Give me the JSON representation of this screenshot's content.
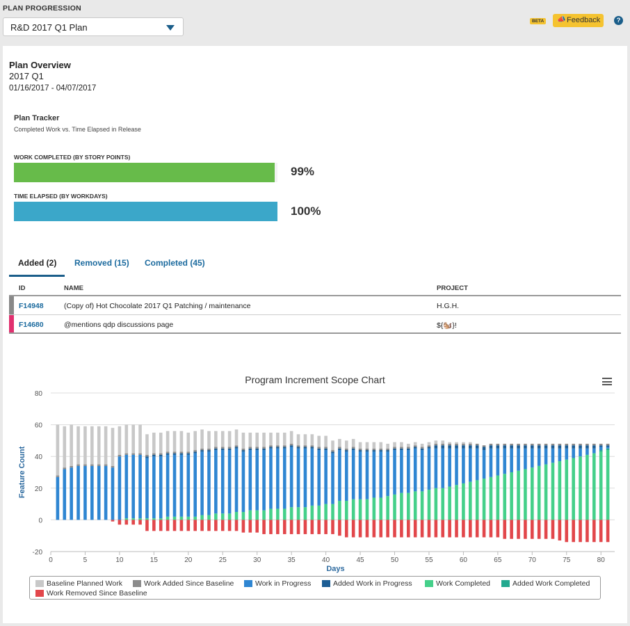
{
  "header": {
    "section_label": "PLAN PROGRESSION",
    "plan_select_value": "R&D 2017 Q1 Plan",
    "beta_badge": "BETA",
    "feedback_label": "Feedback",
    "help_glyph": "?"
  },
  "overview": {
    "title": "Plan Overview",
    "subtitle": "2017 Q1",
    "date_range": "01/16/2017 - 04/07/2017"
  },
  "tracker": {
    "title": "Plan Tracker",
    "subtitle": "Completed Work vs. Time Elapsed in Release",
    "bars": [
      {
        "label": "WORK COMPLETED (BY STORY POINTS)",
        "percent_text": "99%",
        "fraction": 0.99,
        "color": "#67bb4a"
      },
      {
        "label": "TIME ELAPSED (BY WORKDAYS)",
        "percent_text": "100%",
        "fraction": 1.0,
        "color": "#3ba7c9"
      }
    ]
  },
  "tabs": [
    {
      "label": "Added (2)",
      "active": true
    },
    {
      "label": "Removed (15)",
      "active": false
    },
    {
      "label": "Completed (45)",
      "active": false
    }
  ],
  "table": {
    "columns": [
      "ID",
      "NAME",
      "PROJECT"
    ],
    "rows": [
      {
        "id": "F14948",
        "name": "(Copy of) Hot Chocolate 2017 Q1 Patching / maintenance",
        "project": "H.G.H.",
        "color": "#888888"
      },
      {
        "id": "F14680",
        "name": "@mentions qdp discussions page",
        "project": "${🐿️}!",
        "color": "#e0306f"
      }
    ]
  },
  "chart_data": {
    "type": "bar",
    "title": "Program Increment Scope Chart",
    "xlabel": "Days",
    "ylabel": "Feature Count",
    "xlim": [
      0,
      82
    ],
    "ylim": [
      -20,
      80
    ],
    "x_ticks": [
      0,
      5,
      10,
      15,
      20,
      25,
      30,
      35,
      40,
      45,
      50,
      55,
      60,
      65,
      70,
      75,
      80
    ],
    "y_ticks": [
      -20,
      0,
      20,
      40,
      60,
      80
    ],
    "stacked": true,
    "legend_position": "bottom",
    "series": [
      {
        "name": "Baseline Planned Work",
        "color": "#c8c8c8"
      },
      {
        "name": "Work Added Since Baseline",
        "color": "#8c8c8c"
      },
      {
        "name": "Work in Progress",
        "color": "#2f86d2"
      },
      {
        "name": "Added Work in Progress",
        "color": "#1c5d94"
      },
      {
        "name": "Work Completed",
        "color": "#45d08a"
      },
      {
        "name": "Added Work Completed",
        "color": "#22a98f"
      },
      {
        "name": "Work Removed Since Baseline",
        "color": "#e2474b"
      }
    ],
    "days": [
      1,
      2,
      3,
      4,
      5,
      6,
      7,
      8,
      9,
      10,
      11,
      12,
      13,
      14,
      15,
      16,
      17,
      18,
      19,
      20,
      21,
      22,
      23,
      24,
      25,
      26,
      27,
      28,
      29,
      30,
      31,
      32,
      33,
      34,
      35,
      36,
      37,
      38,
      39,
      40,
      41,
      42,
      43,
      44,
      45,
      46,
      47,
      48,
      49,
      50,
      51,
      52,
      53,
      54,
      55,
      56,
      57,
      58,
      59,
      60,
      61,
      62,
      63,
      64,
      65,
      66,
      67,
      68,
      69,
      70,
      71,
      72,
      73,
      74,
      75,
      76,
      77,
      78,
      79,
      80,
      81
    ],
    "baseline_planned": [
      32,
      26,
      26,
      24,
      24,
      24,
      24,
      24,
      24,
      18,
      18,
      18,
      18,
      13,
      13,
      13,
      13,
      13,
      13,
      12,
      12,
      12,
      11,
      10,
      10,
      10,
      10,
      10,
      9,
      9,
      9,
      8,
      8,
      8,
      8,
      7,
      7,
      7,
      7,
      7,
      6,
      5,
      5,
      5,
      4,
      4,
      4,
      4,
      3,
      3,
      3,
      2,
      2,
      2,
      2,
      2,
      2,
      1,
      1,
      1,
      1,
      0,
      0,
      0,
      0,
      0,
      0,
      0,
      0,
      0,
      0,
      0,
      0,
      0,
      0,
      0,
      0,
      0,
      0,
      0,
      0
    ],
    "added_work": [
      1,
      1,
      1,
      1,
      1,
      1,
      1,
      1,
      1,
      1,
      1,
      1,
      1,
      1,
      1,
      1,
      1,
      1,
      1,
      1,
      1,
      1,
      1,
      1,
      1,
      1,
      1,
      1,
      1,
      1,
      1,
      1,
      1,
      1,
      1,
      1,
      1,
      1,
      1,
      1,
      1,
      1,
      1,
      1,
      1,
      1,
      1,
      1,
      1,
      1,
      1,
      1,
      1,
      1,
      1,
      1,
      1,
      1,
      1,
      1,
      1,
      1,
      1,
      1,
      1,
      1,
      1,
      1,
      1,
      1,
      1,
      1,
      1,
      1,
      1,
      1,
      1,
      1,
      1,
      1,
      1
    ],
    "work_in_progress": [
      27,
      32,
      33,
      34,
      34,
      34,
      34,
      34,
      33,
      40,
      40,
      40,
      40,
      38,
      39,
      39,
      39,
      39,
      39,
      39,
      40,
      40,
      40,
      40,
      40,
      40,
      40,
      38,
      38,
      38,
      38,
      38,
      38,
      38,
      38,
      37,
      37,
      36,
      35,
      34,
      32,
      32,
      31,
      31,
      30,
      30,
      29,
      29,
      28,
      28,
      27,
      27,
      27,
      26,
      26,
      25,
      25,
      24,
      23,
      22,
      21,
      20,
      18,
      18,
      17,
      16,
      15,
      14,
      13,
      12,
      11,
      10,
      9,
      8,
      7,
      6,
      5,
      4,
      3,
      2,
      1
    ],
    "added_in_progress": [
      0,
      0,
      0,
      0,
      0,
      0,
      0,
      0,
      0,
      0,
      0,
      0,
      0,
      1,
      1,
      1,
      1,
      1,
      1,
      1,
      1,
      1,
      1,
      1,
      1,
      1,
      1,
      1,
      1,
      1,
      1,
      1,
      1,
      1,
      1,
      1,
      1,
      1,
      1,
      1,
      1,
      1,
      1,
      1,
      1,
      1,
      1,
      1,
      1,
      1,
      1,
      1,
      1,
      1,
      1,
      2,
      2,
      2,
      2,
      2,
      2,
      2,
      2,
      2,
      2,
      2,
      2,
      2,
      2,
      2,
      2,
      2,
      2,
      2,
      2,
      2,
      2,
      2,
      2,
      1,
      1
    ],
    "work_completed": [
      0,
      0,
      0,
      0,
      0,
      0,
      0,
      0,
      0,
      0,
      1,
      1,
      1,
      1,
      1,
      1,
      2,
      2,
      2,
      2,
      2,
      3,
      3,
      4,
      4,
      4,
      5,
      5,
      6,
      6,
      6,
      7,
      7,
      7,
      8,
      8,
      8,
      9,
      9,
      10,
      10,
      12,
      12,
      13,
      13,
      13,
      14,
      14,
      15,
      16,
      17,
      17,
      18,
      18,
      19,
      20,
      20,
      21,
      22,
      23,
      24,
      25,
      26,
      27,
      28,
      29,
      30,
      31,
      32,
      33,
      34,
      35,
      36,
      37,
      38,
      39,
      40,
      41,
      42,
      43,
      44
    ],
    "added_completed": [
      0,
      0,
      0,
      0,
      0,
      0,
      0,
      0,
      0,
      0,
      0,
      0,
      0,
      0,
      0,
      0,
      0,
      0,
      0,
      0,
      0,
      0,
      0,
      0,
      0,
      0,
      0,
      0,
      0,
      0,
      0,
      0,
      0,
      0,
      0,
      0,
      0,
      0,
      0,
      0,
      0,
      0,
      0,
      0,
      0,
      0,
      0,
      0,
      0,
      0,
      0,
      0,
      0,
      0,
      0,
      0,
      0,
      0,
      0,
      0,
      0,
      0,
      0,
      0,
      0,
      0,
      0,
      0,
      0,
      0,
      0,
      0,
      0,
      0,
      0,
      0,
      0,
      0,
      0,
      1,
      1
    ],
    "work_removed": [
      0,
      0,
      0,
      0,
      0,
      0,
      0,
      0,
      -1,
      -3,
      -3,
      -3,
      -3,
      -7,
      -7,
      -7,
      -7,
      -7,
      -7,
      -7,
      -7,
      -7,
      -7,
      -7,
      -7,
      -7,
      -7,
      -8,
      -8,
      -8,
      -9,
      -9,
      -9,
      -9,
      -9,
      -9,
      -9,
      -9,
      -9,
      -9,
      -9,
      -10,
      -11,
      -11,
      -11,
      -11,
      -11,
      -11,
      -11,
      -11,
      -11,
      -11,
      -11,
      -11,
      -11,
      -11,
      -11,
      -11,
      -11,
      -11,
      -11,
      -11,
      -11,
      -11,
      -11,
      -12,
      -12,
      -12,
      -12,
      -12,
      -12,
      -12,
      -12,
      -13,
      -14,
      -14,
      -14,
      -14,
      -14,
      -14,
      -14
    ]
  }
}
